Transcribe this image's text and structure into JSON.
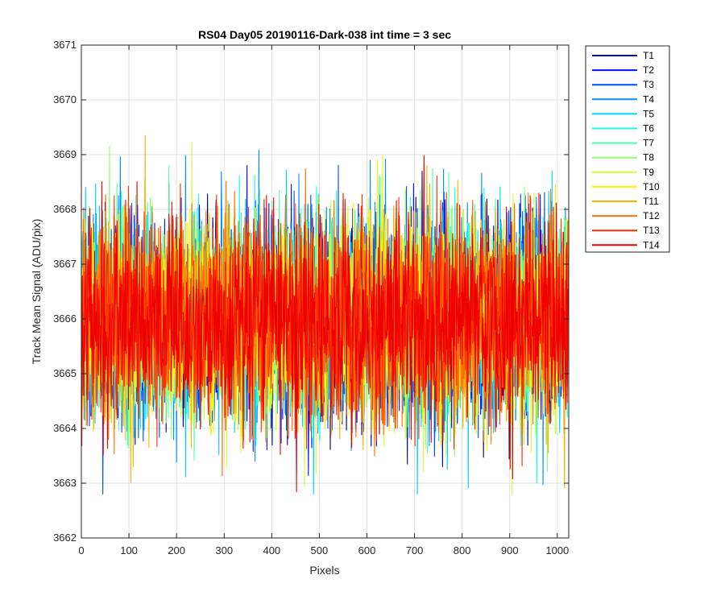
{
  "chart_data": {
    "type": "line",
    "title": "RS04 Day05 20190116-Dark-038 int time = 3 sec",
    "xlabel": "Pixels",
    "ylabel": "Track Mean Signal (ADU/pix)",
    "xlim": [
      0,
      1024
    ],
    "ylim": [
      3662,
      3671
    ],
    "xticks": [
      0,
      100,
      200,
      300,
      400,
      500,
      600,
      700,
      800,
      900,
      1000
    ],
    "yticks": [
      3662,
      3663,
      3664,
      3665,
      3666,
      3667,
      3668,
      3669,
      3670,
      3671
    ],
    "grid": true,
    "legend_position": "outside-top-right",
    "noise_model": {
      "n_points": 1024,
      "x_start": 1,
      "x_step": 1,
      "mean": 3666.0,
      "std": 0.9,
      "min_observed": 3662.8,
      "max_observed": 3670.1
    },
    "series": [
      {
        "name": "T1",
        "color": "#00008f"
      },
      {
        "name": "T2",
        "color": "#0010ff"
      },
      {
        "name": "T3",
        "color": "#0050ff"
      },
      {
        "name": "T4",
        "color": "#0090ff"
      },
      {
        "name": "T5",
        "color": "#00d0ff"
      },
      {
        "name": "T6",
        "color": "#10ffef"
      },
      {
        "name": "T7",
        "color": "#50ffaf"
      },
      {
        "name": "T8",
        "color": "#8fff70"
      },
      {
        "name": "T9",
        "color": "#cfff30"
      },
      {
        "name": "T10",
        "color": "#ffef00"
      },
      {
        "name": "T11",
        "color": "#ffaf00"
      },
      {
        "name": "T12",
        "color": "#ff7000"
      },
      {
        "name": "T13",
        "color": "#ff3000"
      },
      {
        "name": "T14",
        "color": "#ef0000"
      }
    ]
  }
}
